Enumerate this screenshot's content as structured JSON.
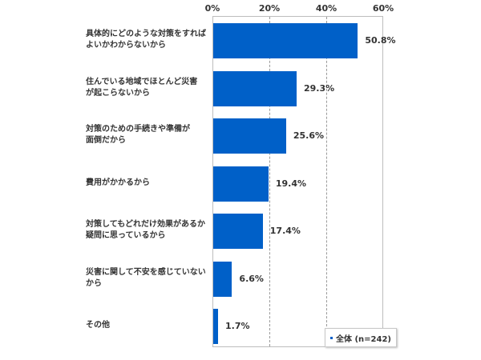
{
  "chart_data": {
    "type": "bar",
    "orientation": "horizontal",
    "title": "",
    "xlabel": "",
    "ylabel": "",
    "xlim": [
      0,
      60
    ],
    "x_ticks": [
      "0%",
      "20%",
      "40%",
      "60%"
    ],
    "grid": true,
    "legend_position": "bottom-right",
    "categories": [
      "具体的にどのような対策をすればよいかわからないから",
      "住んでいる地域でほとんど災害が起こらないから",
      "対策のための手続きや準備が面倒だから",
      "費用がかかるから",
      "対策してもどれだけ効果があるか疑問に思っているから",
      "災害に関して不安を感じていないから",
      "その他"
    ],
    "series": [
      {
        "name": "全体（n=242）",
        "values": [
          50.8,
          29.3,
          25.6,
          19.4,
          17.4,
          6.6,
          1.7
        ],
        "color": "#0060c8"
      }
    ]
  },
  "axis": {
    "ticks": [
      "0%",
      "20%",
      "40%",
      "60%"
    ]
  },
  "rows": [
    {
      "lines": [
        "具体的にどのような対策をすれば",
        "よいかわからないから"
      ],
      "value": 50.8,
      "label": "50.8%"
    },
    {
      "lines": [
        "住んでいる地域でほとんど災害",
        "が起こらないから"
      ],
      "value": 29.3,
      "label": "29.3%"
    },
    {
      "lines": [
        "対策のための手続きや準備が",
        "面倒だから"
      ],
      "value": 25.6,
      "label": "25.6%"
    },
    {
      "lines": [
        "費用がかかるから"
      ],
      "value": 19.4,
      "label": "19.4%"
    },
    {
      "lines": [
        "対策してもどれだけ効果があるか",
        "疑問に思っているから"
      ],
      "value": 17.4,
      "label": "17.4%"
    },
    {
      "lines": [
        "災害に関して不安を感じていない",
        "から"
      ],
      "value": 6.6,
      "label": "6.6%"
    },
    {
      "lines": [
        "その他"
      ],
      "value": 1.7,
      "label": "1.7%"
    }
  ],
  "legend": {
    "label": "全体 (n=242)",
    "color": "#0060c8"
  }
}
